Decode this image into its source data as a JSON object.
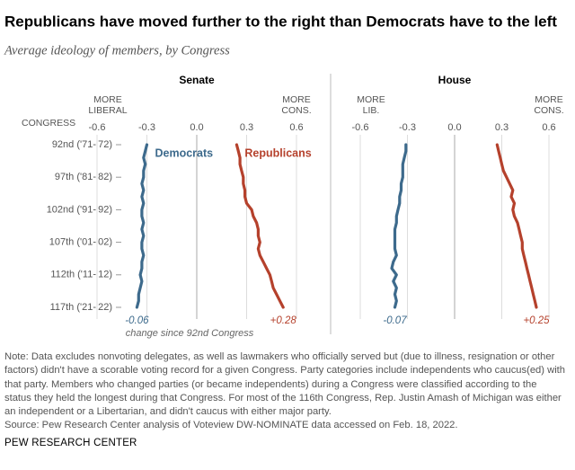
{
  "title": "Republicans have moved further to the right than Democrats have to the left",
  "subtitle": "Average ideology of members, by Congress",
  "note": "Note: Data excludes nonvoting delegates, as well as lawmakers who officially served but (due to illness, resignation or other factors) didn't have a scorable voting record for a given Congress. Party categories include independents who caucus(ed) with that party. Members who changed parties (or became independents) during a Congress were classified according to the status they held the longest during that Congress. For most of the 116th Congress, Rep. Justin Amash of Michigan was either an independent or a Libertarian, and didn't caucus with either major party.",
  "source": "Source: Pew Research Center analysis of Voteview DW-NOMINATE data accessed on Feb. 18, 2022.",
  "footer": "PEW RESEARCH CENTER",
  "chart_data": [
    {
      "type": "line",
      "title": "Senate",
      "ylabel": "CONGRESS",
      "x_label_left": [
        "MORE",
        "LIBERAL"
      ],
      "x_label_right": [
        "MORE",
        "CONS."
      ],
      "annotation": "change since 92nd Congress",
      "categories": [
        "92nd ('71-'72)",
        null,
        null,
        null,
        null,
        "97th ('81-'82)",
        null,
        null,
        null,
        null,
        "102nd ('91-'92)",
        null,
        null,
        null,
        null,
        "107th ('01-'02)",
        null,
        null,
        null,
        null,
        "112th ('11-'12)",
        null,
        null,
        null,
        null,
        "117th ('21-'22)"
      ],
      "xlim": [
        -0.7,
        0.7
      ],
      "xticks": [
        -0.6,
        -0.3,
        {
          "value": 0,
          "label": "0.0"
        },
        0.3,
        0.6
      ],
      "grid": true,
      "series": [
        {
          "name": "Democrats",
          "color": "#3d6a8c",
          "change_label": "-0.06",
          "values": [
            -0.3,
            -0.31,
            -0.32,
            -0.31,
            -0.32,
            -0.32,
            -0.33,
            -0.32,
            -0.33,
            -0.32,
            -0.33,
            -0.33,
            -0.32,
            -0.33,
            -0.32,
            -0.33,
            -0.33,
            -0.32,
            -0.33,
            -0.33,
            -0.34,
            -0.33,
            -0.34,
            -0.35,
            -0.35,
            -0.36
          ]
        },
        {
          "name": "Republicans",
          "color": "#b5412c",
          "change_label": "+0.28",
          "values": [
            0.24,
            0.25,
            0.26,
            0.26,
            0.27,
            0.28,
            0.28,
            0.29,
            0.29,
            0.3,
            0.33,
            0.34,
            0.36,
            0.37,
            0.37,
            0.38,
            0.37,
            0.38,
            0.4,
            0.42,
            0.44,
            0.45,
            0.46,
            0.48,
            0.5,
            0.52
          ]
        }
      ]
    },
    {
      "type": "line",
      "title": "House",
      "x_label_left": [
        "MORE",
        "LIB."
      ],
      "x_label_right": [
        "MORE",
        "CONS."
      ],
      "xlim": [
        -0.7,
        0.7
      ],
      "xticks": [
        -0.6,
        -0.3,
        {
          "value": 0,
          "label": "0.0"
        },
        0.3,
        0.6
      ],
      "grid": true,
      "series": [
        {
          "color": "#3d6a8c",
          "change_label": "-0.07",
          "values": [
            -0.31,
            -0.31,
            -0.32,
            -0.33,
            -0.33,
            -0.33,
            -0.34,
            -0.34,
            -0.35,
            -0.35,
            -0.36,
            -0.37,
            -0.37,
            -0.38,
            -0.38,
            -0.38,
            -0.38,
            -0.37,
            -0.39,
            -0.4,
            -0.37,
            -0.39,
            -0.37,
            -0.38,
            -0.37,
            -0.38
          ]
        },
        {
          "color": "#b5412c",
          "change_label": "+0.25",
          "values": [
            0.27,
            0.28,
            0.29,
            0.3,
            0.31,
            0.33,
            0.35,
            0.37,
            0.36,
            0.38,
            0.37,
            0.38,
            0.4,
            0.41,
            0.42,
            0.43,
            0.43,
            0.44,
            0.45,
            0.46,
            0.47,
            0.48,
            0.49,
            0.5,
            0.51,
            0.52
          ]
        }
      ]
    }
  ]
}
